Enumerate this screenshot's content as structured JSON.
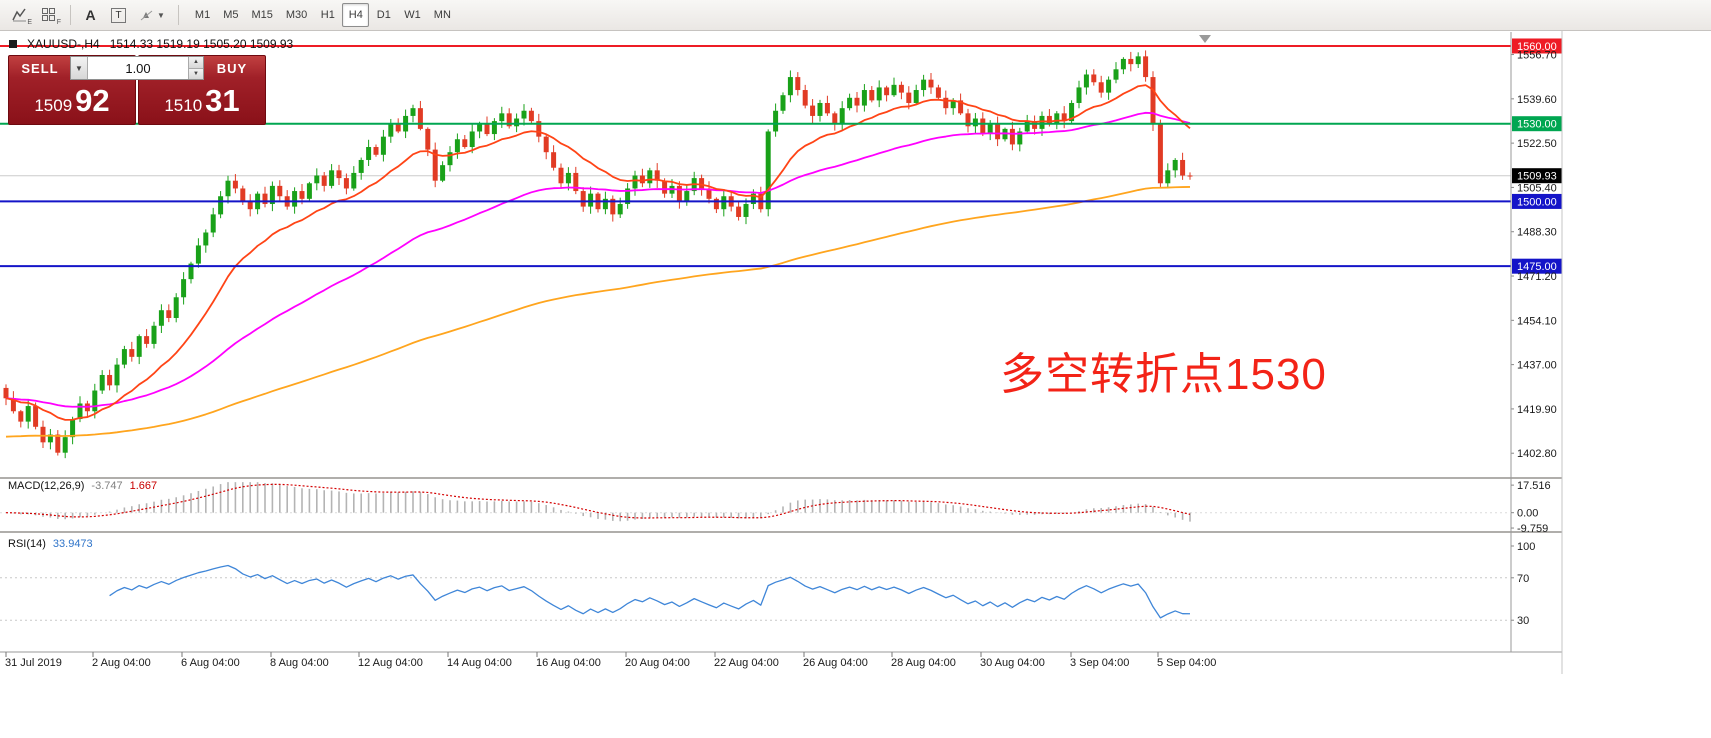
{
  "toolbar": {
    "icon1_sub": "E",
    "icon2_sub": "F",
    "text_tool_label": "A",
    "textbox_tool_label": "T",
    "timeframes": [
      "M1",
      "M5",
      "M15",
      "M30",
      "H1",
      "H4",
      "D1",
      "W1",
      "MN"
    ],
    "active_timeframe": "H4"
  },
  "chart_header": {
    "symbol": "XAUUSD-,H4",
    "ohlc": "1514.33 1519.19 1505.20 1509.93"
  },
  "trade_panel": {
    "sell_label": "SELL",
    "buy_label": "BUY",
    "volume": "1.00",
    "bid_main": "1509",
    "bid_pips": "92",
    "ask_main": "1510",
    "ask_pips": "31"
  },
  "annotation": {
    "text": "多空转折点1530",
    "color": "#f32317"
  },
  "current_price_label": "1509.93",
  "price_axis_labels": [
    "1556.70",
    "1539.60",
    "1522.50",
    "1505.40",
    "1488.30",
    "1471.20",
    "1454.10",
    "1437.00",
    "1419.90",
    "1402.80"
  ],
  "hlines": [
    {
      "label": "1560.00",
      "price": 1560,
      "color": "#ee1c25"
    },
    {
      "label": "1530.00",
      "price": 1530,
      "color": "#00a651"
    },
    {
      "label": "1500.00",
      "price": 1500,
      "color": "#1414c8"
    },
    {
      "label": "1475.00",
      "price": 1475,
      "color": "#1414c8"
    }
  ],
  "macd_panel": {
    "title": "MACD(12,26,9)",
    "value_main": "-3.747",
    "value_signal": "1.667",
    "axis_labels": [
      {
        "text": "17.516",
        "value": 17.516
      },
      {
        "text": "0.00",
        "value": 0
      },
      {
        "text": "-9.759",
        "value": -9.759
      }
    ]
  },
  "rsi_panel": {
    "title": "RSI(14)",
    "value": "33.9473",
    "axis_labels": [
      {
        "text": "100",
        "value": 100
      },
      {
        "text": "70",
        "value": 70
      },
      {
        "text": "30",
        "value": 30
      }
    ],
    "levels": [
      70,
      30
    ]
  },
  "time_axis": [
    "31 Jul 2019",
    "2 Aug 04:00",
    "6 Aug 04:00",
    "8 Aug 04:00",
    "12 Aug 04:00",
    "14 Aug 04:00",
    "16 Aug 04:00",
    "20 Aug 04:00",
    "22 Aug 04:00",
    "26 Aug 04:00",
    "28 Aug 04:00",
    "30 Aug 04:00",
    "3 Sep 04:00",
    "5 Sep 04:00"
  ],
  "chart_data": {
    "type": "candlestick",
    "symbol": "XAUUSD",
    "timeframe": "H4",
    "ohlc_display": {
      "open": "1514.33",
      "high": "1519.19",
      "low": "1505.20",
      "close": "1509.93"
    },
    "visible_price_range": [
      1399,
      1563
    ],
    "first_open": 1428,
    "closes": [
      1424,
      1419,
      1415,
      1421,
      1413,
      1407,
      1410,
      1403,
      1409,
      1416,
      1422,
      1419,
      1427,
      1433,
      1429,
      1437,
      1443,
      1440,
      1448,
      1445,
      1452,
      1458,
      1455,
      1463,
      1470,
      1476,
      1483,
      1488,
      1495,
      1502,
      1508,
      1505,
      1500,
      1497,
      1503,
      1499,
      1506,
      1502,
      1498,
      1504,
      1501,
      1507,
      1510,
      1506,
      1512,
      1509,
      1505,
      1511,
      1516,
      1521,
      1518,
      1525,
      1530,
      1527,
      1533,
      1536,
      1528,
      1520,
      1508,
      1514,
      1519,
      1524,
      1521,
      1527,
      1530,
      1526,
      1531,
      1534,
      1529,
      1532,
      1535,
      1531,
      1525,
      1519,
      1513,
      1507,
      1511,
      1504,
      1498,
      1503,
      1497,
      1501,
      1495,
      1499,
      1505,
      1510,
      1507,
      1512,
      1508,
      1503,
      1506,
      1500,
      1504,
      1509,
      1505,
      1501,
      1497,
      1502,
      1498,
      1494,
      1499,
      1503,
      1497,
      1527,
      1535,
      1541,
      1548,
      1543,
      1537,
      1533,
      1538,
      1534,
      1530,
      1536,
      1540,
      1537,
      1543,
      1539,
      1544,
      1541,
      1545,
      1542,
      1538,
      1543,
      1547,
      1544,
      1540,
      1536,
      1539,
      1534,
      1529,
      1532,
      1526,
      1530,
      1524,
      1528,
      1522,
      1527,
      1531,
      1528,
      1533,
      1530,
      1534,
      1531,
      1538,
      1544,
      1549,
      1546,
      1542,
      1547,
      1551,
      1555,
      1553,
      1556,
      1548,
      1530,
      1507,
      1512,
      1516,
      1510,
      1509.93
    ],
    "up_color": "#19a119",
    "down_color": "#e13b24",
    "ma_fast_color": "#ff4416",
    "ma_mid_color": "#ff00ff",
    "ma_slow_color": "#ffa51e",
    "macd_colors": {
      "histogram": "#b4b4b4",
      "signal": "#d40000"
    },
    "rsi_color": "#3f86d8"
  }
}
